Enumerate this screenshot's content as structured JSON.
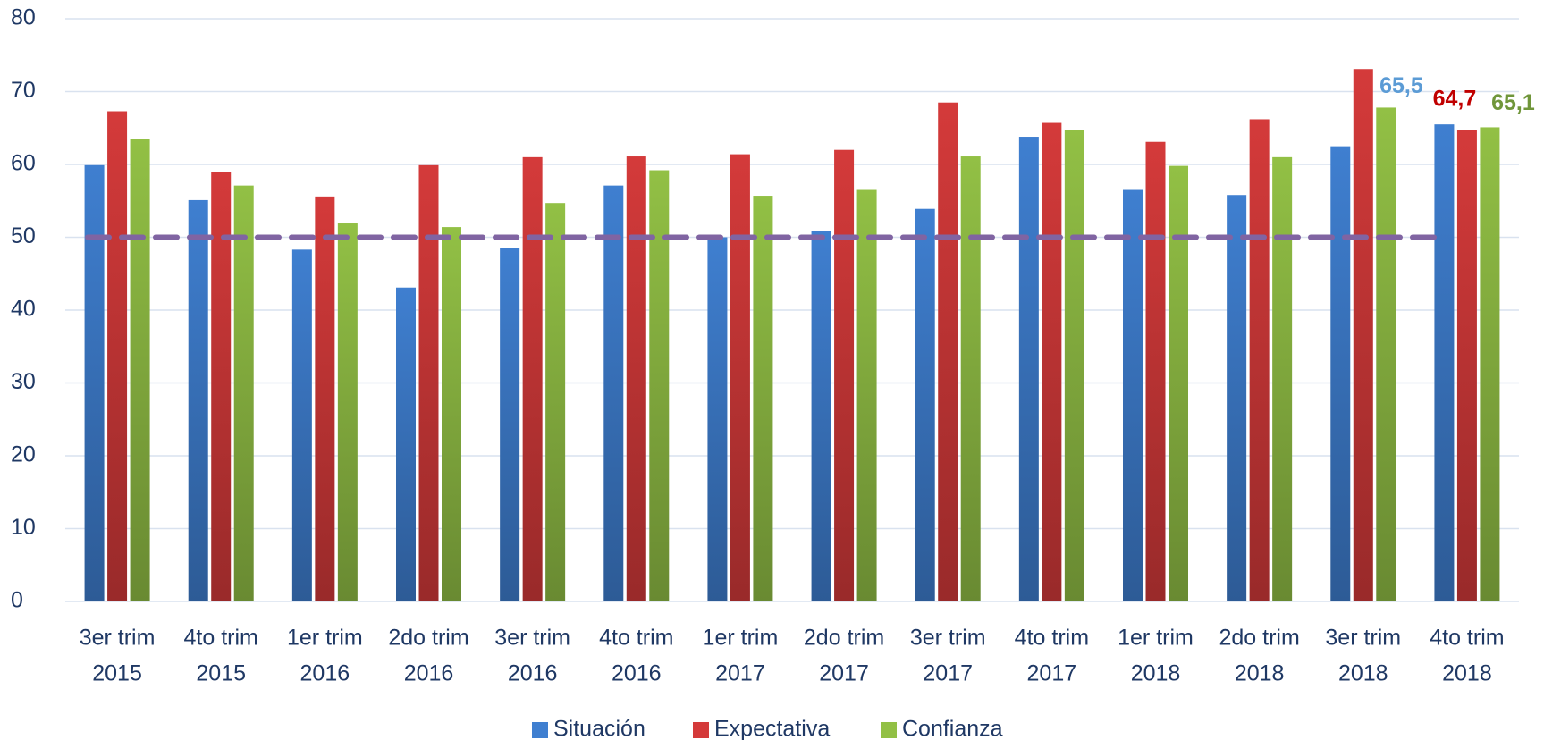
{
  "chart_data": {
    "type": "bar",
    "categories": [
      [
        "3er trim",
        "2015"
      ],
      [
        "4to trim",
        "2015"
      ],
      [
        "1er trim",
        "2016"
      ],
      [
        "2do trim",
        "2016"
      ],
      [
        "3er trim",
        "2016"
      ],
      [
        "4to trim",
        "2016"
      ],
      [
        "1er trim",
        "2017"
      ],
      [
        "2do trim",
        "2017"
      ],
      [
        "3er trim",
        "2017"
      ],
      [
        "4to trim",
        "2017"
      ],
      [
        "1er trim",
        "2018"
      ],
      [
        "2do trim",
        "2018"
      ],
      [
        "3er trim",
        "2018"
      ],
      [
        "4to trim",
        "2018"
      ]
    ],
    "series": [
      {
        "name": "Situación",
        "color": "#3f7fd0",
        "values": [
          59.9,
          55.1,
          48.3,
          43.1,
          48.5,
          57.1,
          50.0,
          50.8,
          53.9,
          63.8,
          56.5,
          55.8,
          62.5,
          65.5
        ],
        "value_labels": [
          null,
          null,
          null,
          null,
          null,
          null,
          null,
          null,
          null,
          null,
          null,
          null,
          null,
          "65,5"
        ]
      },
      {
        "name": "Expectativa",
        "color": "#d43a3a",
        "values": [
          67.3,
          58.9,
          55.6,
          59.9,
          61.0,
          61.1,
          61.4,
          62.0,
          68.5,
          65.7,
          63.1,
          66.2,
          73.1,
          64.7
        ],
        "value_labels": [
          null,
          null,
          null,
          null,
          null,
          null,
          null,
          null,
          null,
          null,
          null,
          null,
          null,
          "64,7"
        ]
      },
      {
        "name": "Confianza",
        "color": "#92c045",
        "values": [
          63.5,
          57.1,
          51.9,
          51.4,
          54.7,
          59.2,
          55.7,
          56.5,
          61.1,
          64.7,
          59.8,
          61.0,
          67.8,
          65.1
        ],
        "value_labels": [
          null,
          null,
          null,
          null,
          null,
          null,
          null,
          null,
          null,
          null,
          null,
          null,
          null,
          "65,1"
        ]
      }
    ],
    "label_colors": [
      "#5b9bd5",
      "#c00000",
      "#70963a"
    ],
    "reference_line": {
      "value": 50,
      "color": "#8064a2"
    },
    "ylim": [
      0,
      80
    ],
    "yticks": [
      0,
      10,
      20,
      30,
      40,
      50,
      60,
      70,
      80
    ],
    "grid": true,
    "legend": "bottom"
  }
}
